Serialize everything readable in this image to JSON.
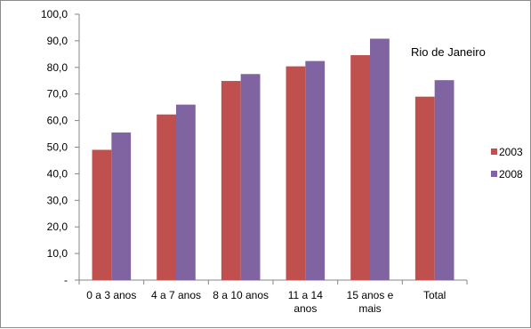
{
  "chart_data": {
    "type": "bar",
    "title": "Rio de Janeiro",
    "xlabel": "",
    "ylabel": "",
    "categories": [
      [
        "0 a 3 anos"
      ],
      [
        "4 a 7 anos"
      ],
      [
        "8 a 10 anos"
      ],
      [
        "11 a 14",
        "anos"
      ],
      [
        "15 anos e",
        "mais"
      ],
      [
        "Total"
      ]
    ],
    "series": [
      {
        "name": "2003",
        "color": "#C0504D",
        "values": [
          49.0,
          62.3,
          74.9,
          80.4,
          84.6,
          69.0
        ]
      },
      {
        "name": "2008",
        "color": "#8064A2",
        "values": [
          55.5,
          66.0,
          77.5,
          82.4,
          90.8,
          75.2
        ]
      }
    ],
    "ylim": [
      0,
      100
    ],
    "yticks": [
      "-",
      "10,0",
      "20,0",
      "30,0",
      "40,0",
      "50,0",
      "60,0",
      "70,0",
      "80,0",
      "90,0",
      "100,0"
    ],
    "grid": false,
    "legend_position": "right"
  }
}
